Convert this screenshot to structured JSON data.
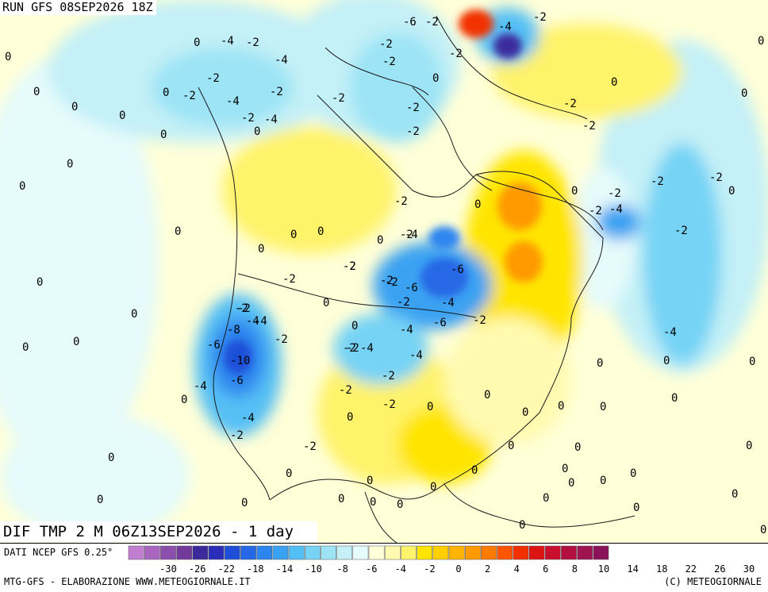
{
  "header": {
    "run_label": "RUN GFS 08SEP2026 18Z",
    "map_title": "DIF TMP 2 M 06Z13SEP2026 - 1 day"
  },
  "footer": {
    "data_source": "DATI NCEP GFS 0.25°",
    "credit_left": "MTG-GFS - ELABORAZIONE WWW.METEOGIORNALE.IT",
    "credit_right": "(C) METEOGIORNALE"
  },
  "legend": {
    "colors": [
      "#c27ed0",
      "#a866c1",
      "#8c4fae",
      "#733a9c",
      "#3c2a9c",
      "#2a2db8",
      "#1f4fd8",
      "#2567e6",
      "#2d86ef",
      "#3aa2f2",
      "#54bff4",
      "#76d3f5",
      "#9de4f6",
      "#c4f0f7",
      "#e6fbfb",
      "#ffffd8",
      "#fffab0",
      "#fff36b",
      "#ffe500",
      "#ffcf00",
      "#ffb400",
      "#ff9a00",
      "#ff7a00",
      "#ff5400",
      "#f23000",
      "#dc1414",
      "#c8102e",
      "#b3103f",
      "#9e1450",
      "#8a1359"
    ],
    "labels": [
      "-30",
      "-26",
      "-22",
      "-18",
      "-14",
      "-10",
      "-8",
      "-6",
      "-4",
      "-2",
      "0",
      "2",
      "4",
      "6",
      "8",
      "10",
      "14",
      "18",
      "22",
      "26",
      "30"
    ]
  },
  "contour_labels": [
    "-6",
    "-2",
    "-2",
    "-4",
    "-2",
    "0",
    "-4",
    "-2",
    "-2",
    "0",
    "-2",
    "0",
    "-2",
    "0",
    "-4",
    "-2",
    "-2",
    "0",
    "-2",
    "-2",
    "0",
    "-4",
    "-2",
    "-2",
    "0",
    "-2",
    "0",
    "-4",
    "-2",
    "0",
    "-2",
    "0",
    "0",
    "-2",
    "0",
    "-2",
    "0",
    "-2",
    "0",
    "-2",
    "-2",
    "-4",
    "0",
    "-2",
    "0",
    "-2",
    "0",
    "0",
    "-4",
    "0",
    "-2",
    "-2",
    "-6",
    "-2",
    "0",
    "-2",
    "0",
    "-2",
    "-2",
    "-6",
    "0",
    "-2",
    "-4",
    "-8",
    "-4",
    "-2",
    "-4",
    "-6",
    "-10",
    "-6",
    "0",
    "-2",
    "-4",
    "-4",
    "-2",
    "-4",
    "-6",
    "0",
    "-2",
    "-4",
    "-2",
    "-4",
    "-2",
    "-2",
    "0",
    "0",
    "-2",
    "-4",
    "-2",
    "0",
    "0",
    "0",
    "0",
    "0",
    "0",
    "0",
    "0",
    "0",
    "0",
    "0",
    "0",
    "0",
    "0",
    "0",
    "0",
    "0",
    "0",
    "0",
    "0",
    "0",
    "0",
    "0",
    "0",
    "0",
    "0",
    "0",
    "0",
    "0",
    "0",
    "0",
    "0",
    "0",
    "0",
    "0"
  ]
}
